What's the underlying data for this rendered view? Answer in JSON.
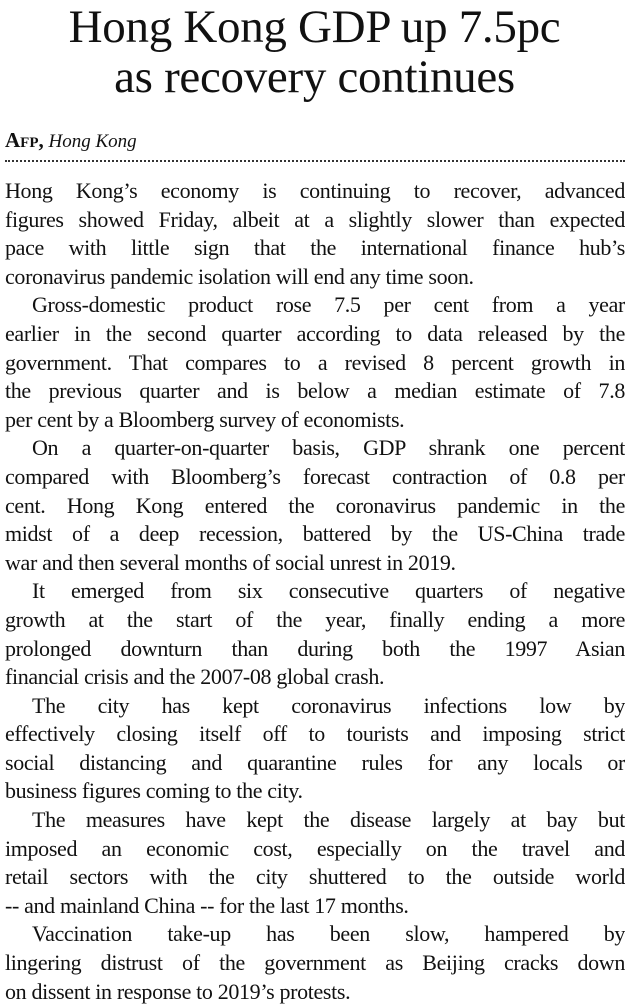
{
  "article": {
    "headline_lines": [
      "Hong Kong GDP up 7.5pc",
      "as recovery continues"
    ],
    "byline": {
      "agency": "Afp,",
      "location": "Hong Kong"
    },
    "paragraphs": [
      [
        "Hong Kong’s economy is continuing to recover, advanced",
        "figures showed Friday, albeit at a slightly slower than expected",
        "pace with little sign that the international finance hub’s",
        "coronavirus pandemic isolation will end any time soon."
      ],
      [
        "Gross-domestic product rose 7.5 per cent from a year",
        "earlier in the second quarter according to data released by the",
        "government. That compares to a revised 8 percent growth in",
        "the previous quarter and is below a median estimate of 7.8",
        "per cent by a Bloomberg survey of economists."
      ],
      [
        "On a quarter-on-quarter basis, GDP shrank one percent",
        "compared with Bloomberg’s forecast contraction of 0.8 per",
        "cent. Hong Kong entered the coronavirus pandemic in the",
        "midst of a deep recession, battered by the US-China trade",
        "war and then several months of social unrest in 2019."
      ],
      [
        "It emerged from six consecutive quarters of negative",
        "growth at the start of the year, finally ending a more",
        "prolonged downturn than during both the 1997 Asian",
        "financial crisis and the 2007-08 global crash."
      ],
      [
        "The city has kept coronavirus infections low by",
        "effectively closing itself off to tourists and imposing strict",
        "social distancing and quarantine rules for any locals or",
        "business figures coming to the city."
      ],
      [
        "The measures have kept the disease largely at bay but",
        "imposed an economic cost, especially on the travel and",
        "retail sectors with the city shuttered to the outside world",
        "-- and mainland China -- for the last 17 months."
      ],
      [
        "Vaccination take-up has been slow, hampered by",
        "lingering distrust of the government as Beijing cracks down",
        "on dissent in response to 2019’s protests."
      ]
    ]
  }
}
